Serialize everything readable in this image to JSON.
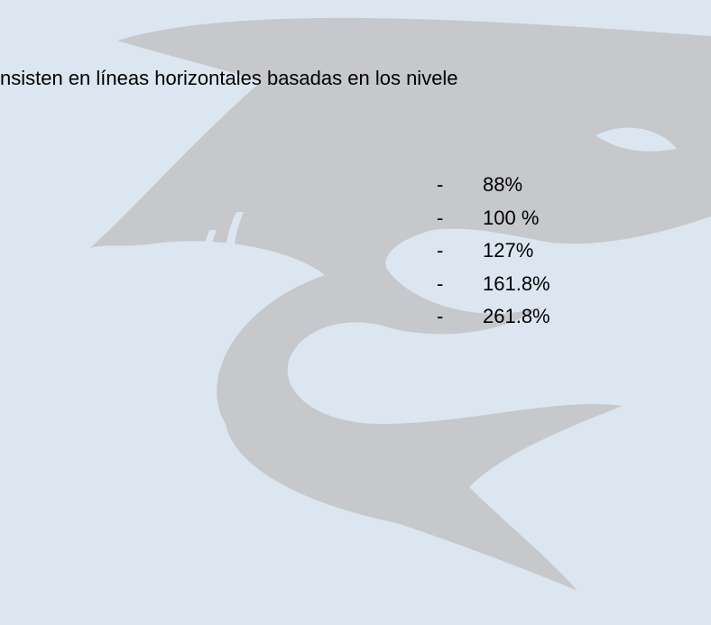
{
  "text": "nsisten en líneas horizontales basadas en los nivele",
  "list": {
    "marker": "-",
    "items": [
      "88%",
      "100 %",
      "127%",
      "161.8%",
      "261.8%"
    ]
  }
}
